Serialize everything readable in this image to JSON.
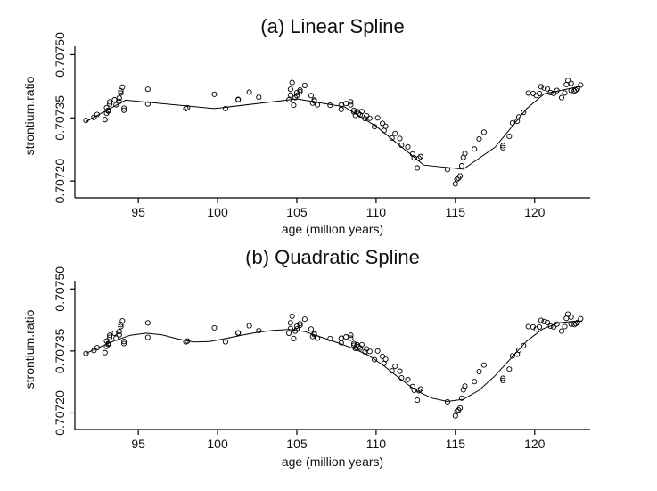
{
  "chart_data": [
    {
      "type": "scatter",
      "title": "(a) Linear Spline",
      "xlabel": "age (million years)",
      "ylabel": "strontium.ratio",
      "xlim": [
        91.0,
        123.5
      ],
      "ylim": [
        0.70716,
        0.70752
      ],
      "xticks": [
        95,
        100,
        105,
        110,
        115,
        120
      ],
      "xtick_labels": [
        "95",
        "100",
        "105",
        "110",
        "115",
        "120"
      ],
      "yticks": [
        0.7072,
        0.70735,
        0.7075
      ],
      "ytick_labels": [
        "0.70720",
        "0.70735",
        "0.70750"
      ],
      "series": [
        {
          "kind": "points",
          "x": [
            91.7,
            92.2,
            92.4,
            92.9,
            93.0,
            93.0,
            93.1,
            93.1,
            93.2,
            93.2,
            93.5,
            93.6,
            93.8,
            93.8,
            93.9,
            93.9,
            94.0,
            94.1,
            94.1,
            95.6,
            95.6,
            98.0,
            98.1,
            99.8,
            100.5,
            101.3,
            101.3,
            102.0,
            102.6,
            104.5,
            104.6,
            104.6,
            104.7,
            104.8,
            104.9,
            105.0,
            105.0,
            105.2,
            105.2,
            105.5,
            105.9,
            106.0,
            106.1,
            106.1,
            106.3,
            107.1,
            107.8,
            107.8,
            108.1,
            108.4,
            108.4,
            108.6,
            108.6,
            108.7,
            108.8,
            108.9,
            109.0,
            109.1,
            109.3,
            109.4,
            109.6,
            109.9,
            110.1,
            110.4,
            110.5,
            110.6,
            111.0,
            111.2,
            111.5,
            111.6,
            112.0,
            112.3,
            112.4,
            112.6,
            112.7,
            112.8,
            114.5,
            115.0,
            115.1,
            115.2,
            115.3,
            115.4,
            115.5,
            115.6,
            116.2,
            116.5,
            116.8,
            118.0,
            118.0,
            118.4,
            118.6,
            118.9,
            119.0,
            119.3,
            119.6,
            119.9,
            120.1,
            120.3,
            120.4,
            120.6,
            120.8,
            121.0,
            121.2,
            121.4,
            121.7,
            121.9,
            122.0,
            122.1,
            122.3,
            122.3,
            122.5,
            122.6,
            122.7,
            122.9
          ],
          "y": [
            0.707344,
            0.707351,
            0.707358,
            0.707346,
            0.707374,
            0.707361,
            0.707368,
            0.707366,
            0.707383,
            0.707388,
            0.707393,
            0.707381,
            0.707397,
            0.707389,
            0.707409,
            0.707414,
            0.707423,
            0.707373,
            0.707368,
            0.707383,
            0.707418,
            0.707372,
            0.707374,
            0.707406,
            0.707372,
            0.707393,
            0.707394,
            0.707411,
            0.707399,
            0.707393,
            0.707404,
            0.707418,
            0.707434,
            0.70738,
            0.707398,
            0.707403,
            0.70741,
            0.707412,
            0.707416,
            0.707427,
            0.707403,
            0.707385,
            0.707392,
            0.70739,
            0.707381,
            0.70738,
            0.70737,
            0.707381,
            0.707384,
            0.707388,
            0.707381,
            0.707364,
            0.707368,
            0.707356,
            0.707365,
            0.70736,
            0.707357,
            0.707365,
            0.707348,
            0.707355,
            0.707349,
            0.707329,
            0.70735,
            0.707337,
            0.70732,
            0.70733,
            0.707302,
            0.707313,
            0.707301,
            0.707285,
            0.707281,
            0.707264,
            0.707255,
            0.707231,
            0.707254,
            0.707258,
            0.707227,
            0.707193,
            0.707204,
            0.707207,
            0.707212,
            0.707236,
            0.707256,
            0.707265,
            0.707276,
            0.7073,
            0.707316,
            0.707279,
            0.707284,
            0.707306,
            0.707338,
            0.707342,
            0.707352,
            0.707363,
            0.707409,
            0.707408,
            0.707403,
            0.707408,
            0.707424,
            0.707421,
            0.707419,
            0.70741,
            0.707408,
            0.707415,
            0.707398,
            0.707409,
            0.707429,
            0.707439,
            0.707432,
            0.707415,
            0.707414,
            0.707416,
            0.707419,
            0.707428
          ]
        },
        {
          "kind": "line",
          "x": [
            91.7,
            94.2,
            99.8,
            105.0,
            108.0,
            110.0,
            113.0,
            115.5,
            117.5,
            119.5,
            120.6,
            123.0
          ],
          "y": [
            0.707341,
            0.707392,
            0.707372,
            0.707395,
            0.707376,
            0.70733,
            0.707238,
            0.707228,
            0.70728,
            0.707372,
            0.707407,
            0.707426
          ]
        }
      ]
    },
    {
      "type": "scatter",
      "title": "(b) Quadratic Spline",
      "xlabel": "age (million years)",
      "ylabel": "strontium.ratio",
      "xlim": [
        91.0,
        123.5
      ],
      "ylim": [
        0.70716,
        0.70752
      ],
      "xticks": [
        95,
        100,
        105,
        110,
        115,
        120
      ],
      "xtick_labels": [
        "95",
        "100",
        "105",
        "110",
        "115",
        "120"
      ],
      "yticks": [
        0.7072,
        0.70735,
        0.7075
      ],
      "ytick_labels": [
        "0.70720",
        "0.70735",
        "0.70750"
      ],
      "series": [
        {
          "kind": "points",
          "x": [
            91.7,
            92.2,
            92.4,
            92.9,
            93.0,
            93.0,
            93.1,
            93.1,
            93.2,
            93.2,
            93.5,
            93.6,
            93.8,
            93.8,
            93.9,
            93.9,
            94.0,
            94.1,
            94.1,
            95.6,
            95.6,
            98.0,
            98.1,
            99.8,
            100.5,
            101.3,
            101.3,
            102.0,
            102.6,
            104.5,
            104.6,
            104.6,
            104.7,
            104.8,
            104.9,
            105.0,
            105.0,
            105.2,
            105.2,
            105.5,
            105.9,
            106.0,
            106.1,
            106.1,
            106.3,
            107.1,
            107.8,
            107.8,
            108.1,
            108.4,
            108.4,
            108.6,
            108.6,
            108.7,
            108.8,
            108.9,
            109.0,
            109.1,
            109.3,
            109.4,
            109.6,
            109.9,
            110.1,
            110.4,
            110.5,
            110.6,
            111.0,
            111.2,
            111.5,
            111.6,
            112.0,
            112.3,
            112.4,
            112.6,
            112.7,
            112.8,
            114.5,
            115.0,
            115.1,
            115.2,
            115.3,
            115.4,
            115.5,
            115.6,
            116.2,
            116.5,
            116.8,
            118.0,
            118.0,
            118.4,
            118.6,
            118.9,
            119.0,
            119.3,
            119.6,
            119.9,
            120.1,
            120.3,
            120.4,
            120.6,
            120.8,
            121.0,
            121.2,
            121.4,
            121.7,
            121.9,
            122.0,
            122.1,
            122.3,
            122.3,
            122.5,
            122.6,
            122.7,
            122.9
          ],
          "y": [
            0.707344,
            0.707351,
            0.707358,
            0.707346,
            0.707374,
            0.707361,
            0.707368,
            0.707366,
            0.707383,
            0.707388,
            0.707393,
            0.707381,
            0.707397,
            0.707389,
            0.707409,
            0.707414,
            0.707423,
            0.707373,
            0.707368,
            0.707383,
            0.707418,
            0.707372,
            0.707374,
            0.707406,
            0.707372,
            0.707393,
            0.707394,
            0.707411,
            0.707399,
            0.707393,
            0.707404,
            0.707418,
            0.707434,
            0.70738,
            0.707398,
            0.707403,
            0.70741,
            0.707412,
            0.707416,
            0.707427,
            0.707403,
            0.707385,
            0.707392,
            0.70739,
            0.707381,
            0.70738,
            0.70737,
            0.707381,
            0.707384,
            0.707388,
            0.707381,
            0.707364,
            0.707368,
            0.707356,
            0.707365,
            0.70736,
            0.707357,
            0.707365,
            0.707348,
            0.707355,
            0.707349,
            0.707329,
            0.70735,
            0.707337,
            0.70732,
            0.70733,
            0.707302,
            0.707313,
            0.707301,
            0.707285,
            0.707281,
            0.707264,
            0.707255,
            0.707231,
            0.707254,
            0.707258,
            0.707227,
            0.707193,
            0.707204,
            0.707207,
            0.707212,
            0.707236,
            0.707256,
            0.707265,
            0.707276,
            0.7073,
            0.707316,
            0.707279,
            0.707284,
            0.707306,
            0.707338,
            0.707342,
            0.707352,
            0.707363,
            0.707409,
            0.707408,
            0.707403,
            0.707408,
            0.707424,
            0.707421,
            0.707419,
            0.70741,
            0.707408,
            0.707415,
            0.707398,
            0.707409,
            0.707429,
            0.707439,
            0.707432,
            0.707415,
            0.707414,
            0.707416,
            0.707419,
            0.707428
          ]
        },
        {
          "kind": "line",
          "x": [
            91.7,
            92.5,
            93.5,
            94.5,
            95.5,
            96.5,
            97.5,
            98.5,
            99.5,
            100.5,
            101.5,
            102.5,
            103.5,
            104.5,
            105.5,
            106.5,
            107.5,
            108.5,
            109.5,
            110.5,
            111.5,
            112.5,
            113.5,
            114.5,
            115.5,
            116.5,
            117.5,
            118.5,
            119.5,
            120.5,
            121.5,
            122.5,
            123.0
          ],
          "y": [
            0.707344,
            0.707358,
            0.707375,
            0.707388,
            0.707393,
            0.707389,
            0.707379,
            0.707372,
            0.707373,
            0.70738,
            0.707388,
            0.707395,
            0.7074,
            0.707402,
            0.707397,
            0.707384,
            0.707371,
            0.707357,
            0.70734,
            0.707314,
            0.707283,
            0.707255,
            0.707236,
            0.707228,
            0.707233,
            0.707255,
            0.70729,
            0.707332,
            0.707374,
            0.707403,
            0.707418,
            0.707422,
            0.707422
          ]
        }
      ]
    }
  ]
}
